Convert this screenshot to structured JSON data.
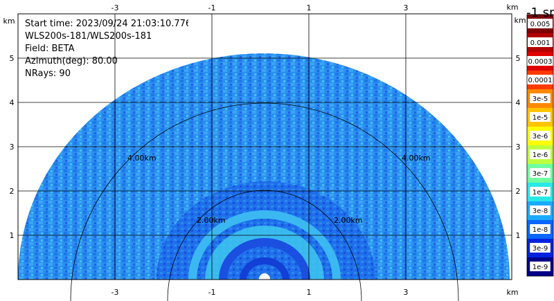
{
  "info": {
    "start_time": "Start time: 2023/09/24 21:03:10.776",
    "instrument": "WLS200s-181/WLS200s-181",
    "field": "Field: BETA",
    "azimuth": "Azimuth(deg): 80.00",
    "nrays": "NRays: 90"
  },
  "axes": {
    "unit": "km",
    "x_ticks": [
      "-3",
      "-1",
      "1",
      "3"
    ],
    "y_ticks": [
      "5",
      "4",
      "3",
      "2",
      "1"
    ]
  },
  "rings": {
    "labels": [
      "4.00km",
      "4.00km",
      "2.00km",
      "2.00km"
    ]
  },
  "colorbar": {
    "title": "-1 sr",
    "labels": [
      "0.005",
      "0.001",
      "0.0003",
      "0.0001",
      "3e-5",
      "1e-5",
      "3e-6",
      "1e-6",
      "3e-7",
      "1e-7",
      "3e-8",
      "1e-8",
      "3e-9",
      "1e-9"
    ],
    "colors": [
      "#7f0000",
      "#b30000",
      "#e00000",
      "#ff3a00",
      "#ff8800",
      "#ffc400",
      "#ffff00",
      "#bfff3f",
      "#6fffa0",
      "#28e8e8",
      "#1aaaff",
      "#0a66ff",
      "#0022e0",
      "#000088"
    ]
  },
  "colors": {
    "field_base": "#2a8fef",
    "field_dark": "#1a5fe6",
    "field_light": "#3fb0f5",
    "field_cyan": "#3ee0e8"
  }
}
